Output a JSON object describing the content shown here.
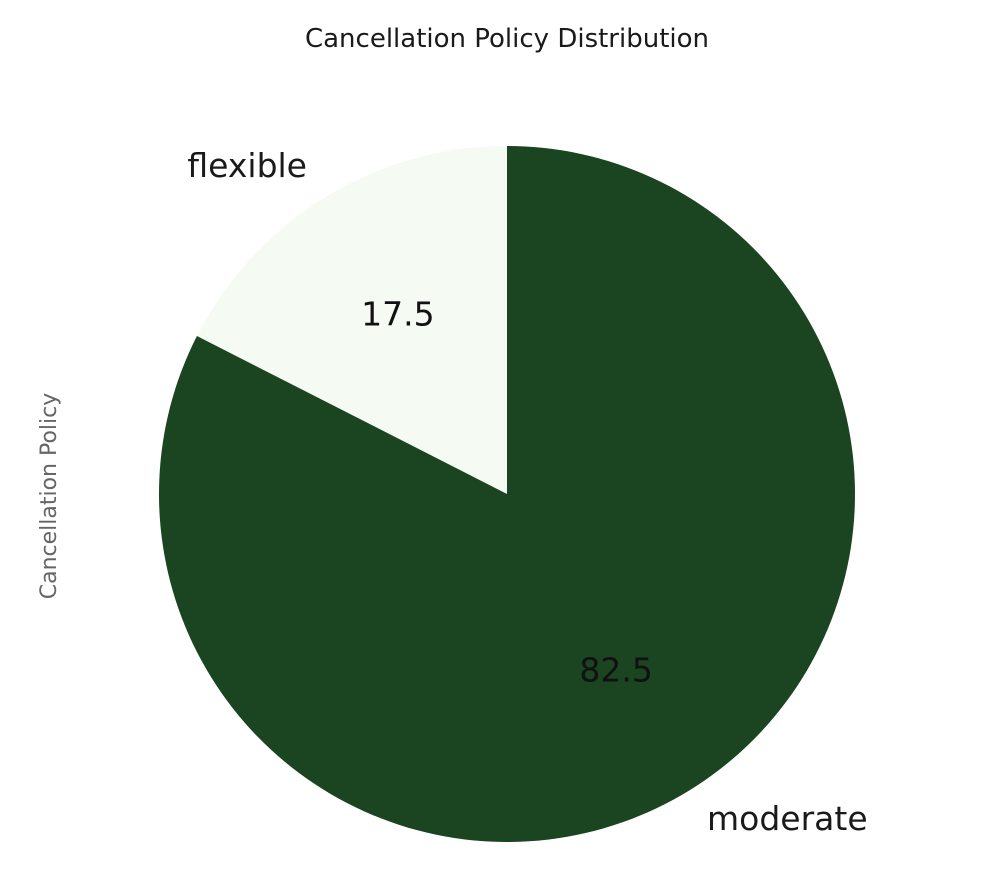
{
  "chart_data": {
    "type": "pie",
    "title": "Cancellation Policy Distribution",
    "ylabel": "Cancellation Policy",
    "categories": [
      "flexible",
      "moderate"
    ],
    "values": [
      17.5,
      82.5
    ],
    "value_labels": [
      "17.5",
      "82.5"
    ],
    "colors": [
      "#f5faf3",
      "#1b4421"
    ],
    "start_angle_deg": 90,
    "direction": "counterclockwise"
  }
}
